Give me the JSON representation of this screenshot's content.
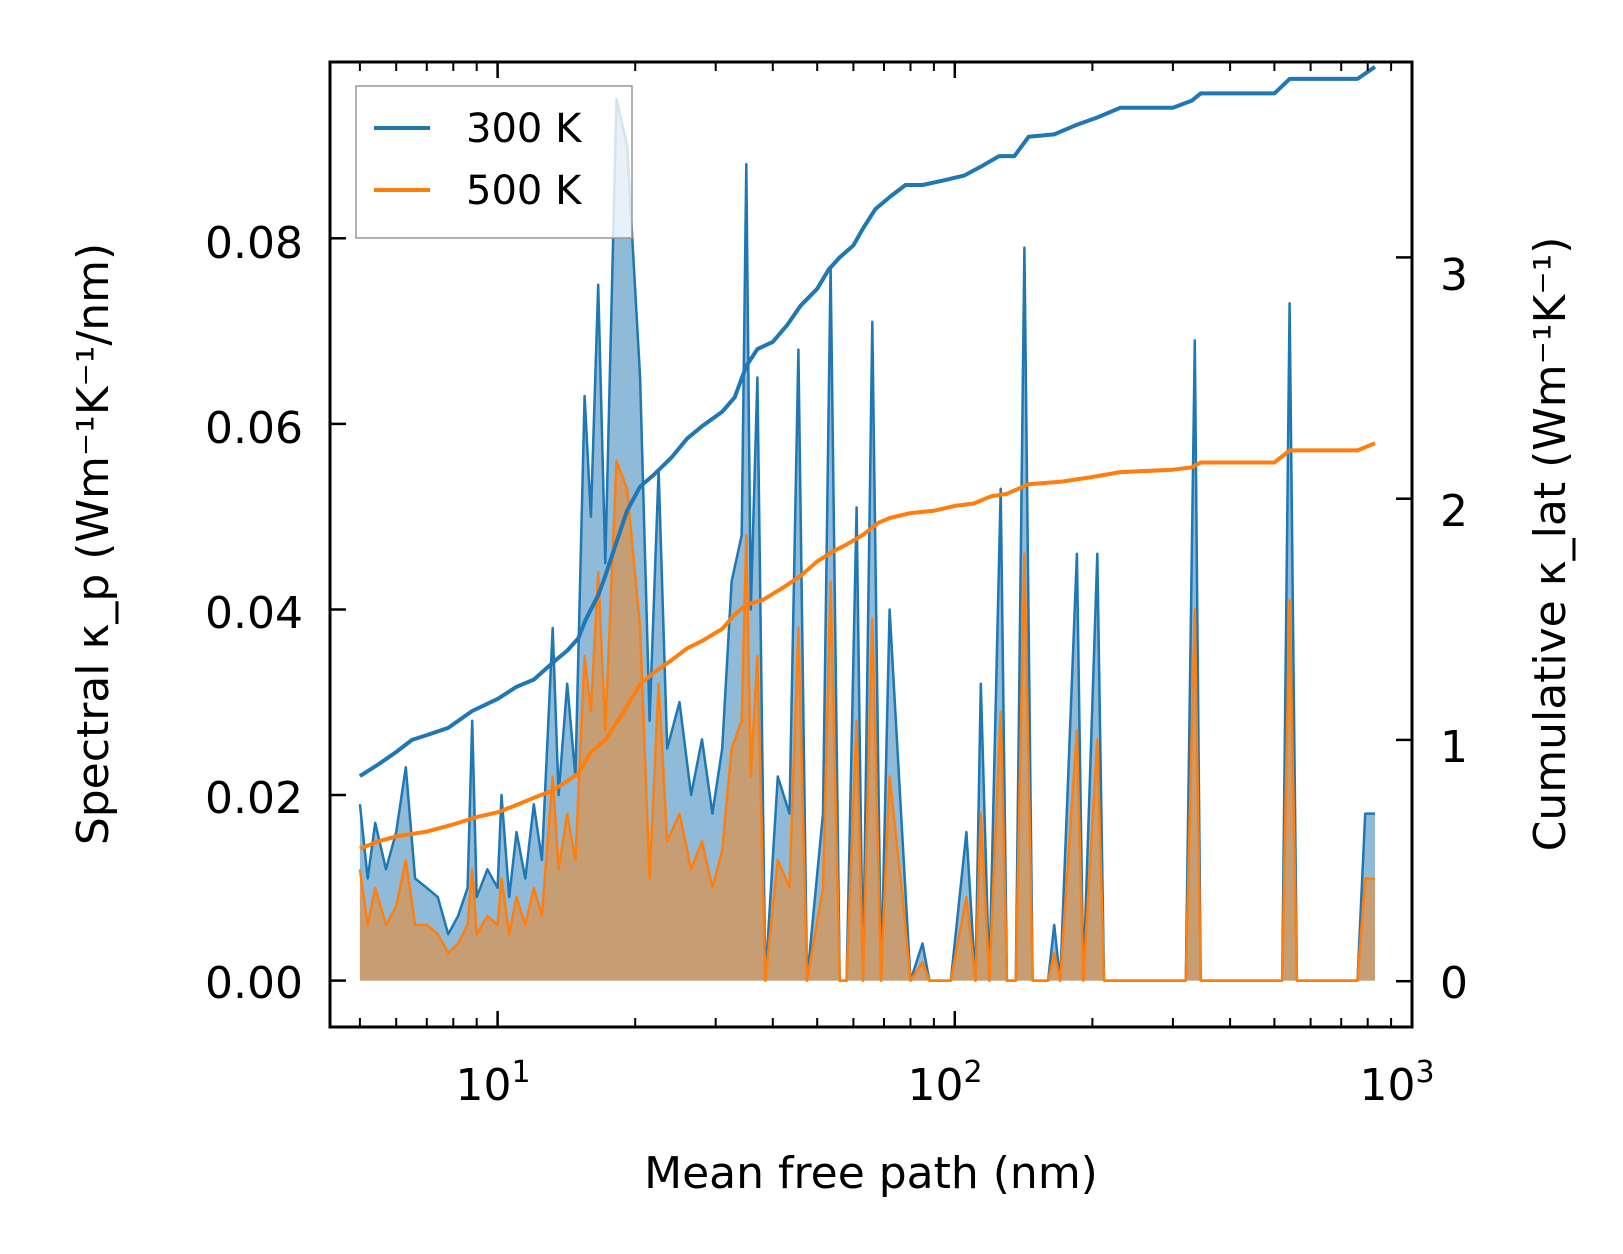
{
  "chart_data": {
    "type": "line",
    "xlabel": "Mean free path (nm)",
    "ylabel_left": "Spectral κ_p (Wm⁻¹K⁻¹/nm)",
    "ylabel_right": "Cumulative κ_lat (Wm⁻¹K⁻¹)",
    "x_scale": "log",
    "xlim": [
      4.3,
      1000
    ],
    "ylim_left": [
      -0.005,
      0.099
    ],
    "ylim_right": [
      -0.19,
      3.81
    ],
    "x_ticks": [
      {
        "value": 10,
        "base": "10",
        "exp": "1"
      },
      {
        "value": 100,
        "base": "10",
        "exp": "2"
      },
      {
        "value": 1000,
        "base": "10",
        "exp": "3"
      }
    ],
    "y_ticks_left": [
      {
        "value": 0.0,
        "label": "0.00"
      },
      {
        "value": 0.02,
        "label": "0.02"
      },
      {
        "value": 0.04,
        "label": "0.04"
      },
      {
        "value": 0.06,
        "label": "0.06"
      },
      {
        "value": 0.08,
        "label": "0.08"
      }
    ],
    "y_ticks_right": [
      {
        "value": 0,
        "label": "0"
      },
      {
        "value": 1,
        "label": "1"
      },
      {
        "value": 2,
        "label": "2"
      },
      {
        "value": 3,
        "label": "3"
      }
    ],
    "legend": [
      {
        "name": "300 K",
        "color": "#1f77b4"
      },
      {
        "name": "500 K",
        "color": "#ff7f0e"
      }
    ],
    "legend_position": "top-left",
    "spectral_series": [
      {
        "name": "300 K",
        "color": "#1f77b4",
        "points": [
          [
            5.0,
            0.019
          ],
          [
            5.2,
            0.011
          ],
          [
            5.4,
            0.017
          ],
          [
            5.7,
            0.012
          ],
          [
            6.0,
            0.016
          ],
          [
            6.3,
            0.023
          ],
          [
            6.6,
            0.011
          ],
          [
            7.0,
            0.01
          ],
          [
            7.4,
            0.009
          ],
          [
            7.8,
            0.005
          ],
          [
            8.2,
            0.007
          ],
          [
            8.6,
            0.01
          ],
          [
            8.8,
            0.028
          ],
          [
            9.0,
            0.009
          ],
          [
            9.5,
            0.012
          ],
          [
            10.0,
            0.01
          ],
          [
            10.2,
            0.02
          ],
          [
            10.6,
            0.009
          ],
          [
            11.0,
            0.016
          ],
          [
            11.5,
            0.011
          ],
          [
            12.0,
            0.019
          ],
          [
            12.5,
            0.013
          ],
          [
            13.2,
            0.038
          ],
          [
            13.6,
            0.02
          ],
          [
            14.2,
            0.032
          ],
          [
            14.8,
            0.022
          ],
          [
            15.5,
            0.063
          ],
          [
            16.0,
            0.05
          ],
          [
            16.6,
            0.075
          ],
          [
            17.2,
            0.045
          ],
          [
            18.2,
            0.095
          ],
          [
            19.2,
            0.09
          ],
          [
            20.5,
            0.065
          ],
          [
            21.5,
            0.028
          ],
          [
            22.5,
            0.055
          ],
          [
            23.5,
            0.025
          ],
          [
            25.0,
            0.03
          ],
          [
            26.5,
            0.02
          ],
          [
            28.0,
            0.026
          ],
          [
            29.5,
            0.018
          ],
          [
            31.0,
            0.025
          ],
          [
            32.5,
            0.043
          ],
          [
            34.2,
            0.048
          ],
          [
            35.0,
            0.088
          ],
          [
            35.8,
            0.04
          ],
          [
            37.0,
            0.065
          ],
          [
            38.5,
            0.0
          ],
          [
            41.0,
            0.022
          ],
          [
            43.5,
            0.018
          ],
          [
            45.5,
            0.068
          ],
          [
            47.5,
            0.0
          ],
          [
            51.5,
            0.018
          ],
          [
            53.5,
            0.077
          ],
          [
            56.0,
            0.0
          ],
          [
            58.0,
            0.0
          ],
          [
            61.0,
            0.051
          ],
          [
            63.0,
            0.0
          ],
          [
            66.0,
            0.071
          ],
          [
            69.0,
            0.0
          ],
          [
            72.0,
            0.04
          ],
          [
            76.5,
            0.017
          ],
          [
            80.0,
            0.0
          ],
          [
            85.0,
            0.004
          ],
          [
            88.0,
            0.0
          ],
          [
            98.0,
            0.0
          ],
          [
            106.0,
            0.016
          ],
          [
            111.0,
            0.0
          ],
          [
            114.0,
            0.032
          ],
          [
            119.0,
            0.0
          ],
          [
            126.0,
            0.053
          ],
          [
            130.0,
            0.0
          ],
          [
            136.0,
            0.0
          ],
          [
            142.0,
            0.079
          ],
          [
            148.0,
            0.0
          ],
          [
            160.0,
            0.0
          ],
          [
            165.0,
            0.006
          ],
          [
            170.0,
            0.0
          ],
          [
            185.0,
            0.046
          ],
          [
            191.0,
            0.0
          ],
          [
            205.0,
            0.046
          ],
          [
            212.0,
            0.0
          ],
          [
            320.0,
            0.0
          ],
          [
            335.0,
            0.069
          ],
          [
            345.0,
            0.0
          ],
          [
            520.0,
            0.0
          ],
          [
            540.0,
            0.073
          ],
          [
            560.0,
            0.0
          ],
          [
            760.0,
            0.0
          ],
          [
            790.0,
            0.018
          ],
          [
            830.0,
            0.018
          ]
        ]
      },
      {
        "name": "500 K",
        "color": "#ff7f0e",
        "points": [
          [
            5.0,
            0.012
          ],
          [
            5.2,
            0.006
          ],
          [
            5.4,
            0.01
          ],
          [
            5.7,
            0.006
          ],
          [
            6.0,
            0.008
          ],
          [
            6.3,
            0.013
          ],
          [
            6.6,
            0.006
          ],
          [
            7.0,
            0.006
          ],
          [
            7.4,
            0.005
          ],
          [
            7.8,
            0.003
          ],
          [
            8.2,
            0.004
          ],
          [
            8.6,
            0.006
          ],
          [
            8.8,
            0.012
          ],
          [
            9.0,
            0.005
          ],
          [
            9.5,
            0.007
          ],
          [
            10.0,
            0.006
          ],
          [
            10.2,
            0.011
          ],
          [
            10.6,
            0.005
          ],
          [
            11.0,
            0.009
          ],
          [
            11.5,
            0.006
          ],
          [
            12.0,
            0.01
          ],
          [
            12.5,
            0.007
          ],
          [
            13.2,
            0.022
          ],
          [
            13.6,
            0.012
          ],
          [
            14.2,
            0.018
          ],
          [
            14.8,
            0.013
          ],
          [
            15.5,
            0.035
          ],
          [
            16.0,
            0.029
          ],
          [
            16.6,
            0.044
          ],
          [
            17.2,
            0.027
          ],
          [
            18.2,
            0.056
          ],
          [
            19.2,
            0.053
          ],
          [
            20.5,
            0.038
          ],
          [
            21.5,
            0.011
          ],
          [
            22.5,
            0.032
          ],
          [
            23.5,
            0.015
          ],
          [
            25.0,
            0.018
          ],
          [
            26.5,
            0.012
          ],
          [
            28.0,
            0.015
          ],
          [
            29.5,
            0.01
          ],
          [
            31.0,
            0.014
          ],
          [
            32.5,
            0.025
          ],
          [
            34.2,
            0.028
          ],
          [
            35.0,
            0.048
          ],
          [
            35.8,
            0.022
          ],
          [
            37.0,
            0.035
          ],
          [
            38.5,
            0.0
          ],
          [
            41.0,
            0.013
          ],
          [
            43.5,
            0.01
          ],
          [
            45.5,
            0.038
          ],
          [
            47.5,
            0.0
          ],
          [
            51.5,
            0.01
          ],
          [
            53.5,
            0.043
          ],
          [
            56.0,
            0.0
          ],
          [
            58.0,
            0.0
          ],
          [
            61.0,
            0.028
          ],
          [
            63.0,
            0.0
          ],
          [
            66.0,
            0.039
          ],
          [
            69.0,
            0.0
          ],
          [
            72.0,
            0.022
          ],
          [
            76.5,
            0.01
          ],
          [
            80.0,
            0.0
          ],
          [
            85.0,
            0.002
          ],
          [
            88.0,
            0.0
          ],
          [
            98.0,
            0.0
          ],
          [
            106.0,
            0.009
          ],
          [
            111.0,
            0.0
          ],
          [
            114.0,
            0.018
          ],
          [
            119.0,
            0.0
          ],
          [
            126.0,
            0.029
          ],
          [
            130.0,
            0.0
          ],
          [
            136.0,
            0.0
          ],
          [
            142.0,
            0.046
          ],
          [
            148.0,
            0.0
          ],
          [
            160.0,
            0.0
          ],
          [
            165.0,
            0.003
          ],
          [
            170.0,
            0.0
          ],
          [
            185.0,
            0.027
          ],
          [
            191.0,
            0.0
          ],
          [
            205.0,
            0.026
          ],
          [
            212.0,
            0.0
          ],
          [
            320.0,
            0.0
          ],
          [
            335.0,
            0.04
          ],
          [
            345.0,
            0.0
          ],
          [
            520.0,
            0.0
          ],
          [
            540.0,
            0.041
          ],
          [
            560.0,
            0.0
          ],
          [
            760.0,
            0.0
          ],
          [
            790.0,
            0.011
          ],
          [
            830.0,
            0.011
          ]
        ]
      }
    ],
    "cumulative_series": [
      {
        "name": "300 K",
        "color": "#1f77b4",
        "points": [
          [
            5.0,
            0.85
          ],
          [
            5.5,
            0.9
          ],
          [
            6.0,
            0.95
          ],
          [
            6.5,
            1.0
          ],
          [
            7.0,
            1.02
          ],
          [
            7.8,
            1.05
          ],
          [
            8.8,
            1.12
          ],
          [
            10.0,
            1.17
          ],
          [
            11.0,
            1.22
          ],
          [
            12.0,
            1.25
          ],
          [
            13.2,
            1.32
          ],
          [
            14.2,
            1.37
          ],
          [
            15.0,
            1.42
          ],
          [
            15.6,
            1.5
          ],
          [
            16.6,
            1.6
          ],
          [
            17.2,
            1.68
          ],
          [
            18.2,
            1.82
          ],
          [
            19.2,
            1.95
          ],
          [
            20.5,
            2.05
          ],
          [
            22.0,
            2.1
          ],
          [
            24.0,
            2.17
          ],
          [
            26.0,
            2.25
          ],
          [
            28.0,
            2.3
          ],
          [
            31.0,
            2.36
          ],
          [
            33.0,
            2.42
          ],
          [
            35.0,
            2.55
          ],
          [
            37.0,
            2.62
          ],
          [
            40.0,
            2.65
          ],
          [
            43.0,
            2.72
          ],
          [
            46.0,
            2.8
          ],
          [
            50.0,
            2.87
          ],
          [
            53.0,
            2.95
          ],
          [
            56.0,
            3.0
          ],
          [
            60.0,
            3.05
          ],
          [
            63.0,
            3.12
          ],
          [
            67.0,
            3.2
          ],
          [
            72.0,
            3.25
          ],
          [
            78.0,
            3.3
          ],
          [
            85.0,
            3.3
          ],
          [
            95.0,
            3.32
          ],
          [
            105.0,
            3.34
          ],
          [
            115.0,
            3.38
          ],
          [
            125.0,
            3.42
          ],
          [
            135.0,
            3.42
          ],
          [
            145.0,
            3.5
          ],
          [
            165.0,
            3.51
          ],
          [
            185.0,
            3.55
          ],
          [
            205.0,
            3.58
          ],
          [
            230.0,
            3.62
          ],
          [
            300.0,
            3.62
          ],
          [
            330.0,
            3.65
          ],
          [
            345.0,
            3.68
          ],
          [
            500.0,
            3.68
          ],
          [
            540.0,
            3.74
          ],
          [
            760.0,
            3.74
          ],
          [
            830.0,
            3.79
          ]
        ]
      },
      {
        "name": "500 K",
        "color": "#ff7f0e",
        "points": [
          [
            5.0,
            0.55
          ],
          [
            5.5,
            0.58
          ],
          [
            6.0,
            0.6
          ],
          [
            7.0,
            0.62
          ],
          [
            8.0,
            0.65
          ],
          [
            9.0,
            0.68
          ],
          [
            10.0,
            0.7
          ],
          [
            11.0,
            0.73
          ],
          [
            12.0,
            0.76
          ],
          [
            13.2,
            0.79
          ],
          [
            14.2,
            0.83
          ],
          [
            15.0,
            0.86
          ],
          [
            16.0,
            0.95
          ],
          [
            17.2,
            1.0
          ],
          [
            18.2,
            1.07
          ],
          [
            19.2,
            1.14
          ],
          [
            20.5,
            1.23
          ],
          [
            22.0,
            1.28
          ],
          [
            24.0,
            1.33
          ],
          [
            26.0,
            1.38
          ],
          [
            28.0,
            1.41
          ],
          [
            31.0,
            1.46
          ],
          [
            33.0,
            1.52
          ],
          [
            35.0,
            1.56
          ],
          [
            38.0,
            1.58
          ],
          [
            42.0,
            1.63
          ],
          [
            46.0,
            1.68
          ],
          [
            50.0,
            1.74
          ],
          [
            54.0,
            1.78
          ],
          [
            58.0,
            1.81
          ],
          [
            63.0,
            1.85
          ],
          [
            68.0,
            1.9
          ],
          [
            72.0,
            1.92
          ],
          [
            80.0,
            1.94
          ],
          [
            90.0,
            1.95
          ],
          [
            100.0,
            1.97
          ],
          [
            110.0,
            1.98
          ],
          [
            120.0,
            2.01
          ],
          [
            130.0,
            2.02
          ],
          [
            145.0,
            2.06
          ],
          [
            170.0,
            2.07
          ],
          [
            200.0,
            2.09
          ],
          [
            230.0,
            2.11
          ],
          [
            300.0,
            2.12
          ],
          [
            330.0,
            2.13
          ],
          [
            345.0,
            2.15
          ],
          [
            500.0,
            2.15
          ],
          [
            540.0,
            2.2
          ],
          [
            760.0,
            2.2
          ],
          [
            830.0,
            2.23
          ]
        ]
      }
    ]
  }
}
